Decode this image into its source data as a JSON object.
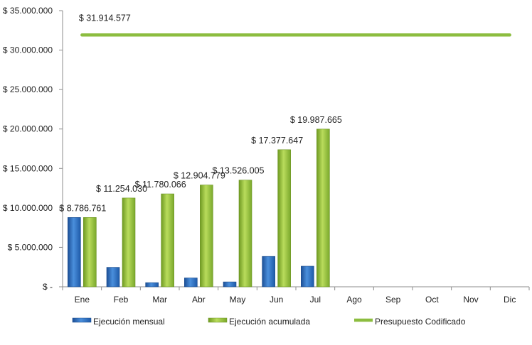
{
  "chart_data": {
    "type": "bar",
    "categories": [
      "Ene",
      "Feb",
      "Mar",
      "Abr",
      "May",
      "Jun",
      "Jul",
      "Ago",
      "Sep",
      "Oct",
      "Nov",
      "Dic"
    ],
    "ylim": [
      0,
      35000000
    ],
    "y_ticks": [
      0,
      5000000,
      10000000,
      15000000,
      20000000,
      25000000,
      30000000,
      35000000
    ],
    "y_tick_labels": [
      "$ -",
      "$ 5.000.000",
      "$ 10.000.000",
      "$ 15.000.000",
      "$ 20.000.000",
      "$ 25.000.000",
      "$ 30.000.000",
      "$ 35.000.000"
    ],
    "grid": false,
    "legend_position": "bottom",
    "series": [
      {
        "name": "Ejecución mensual",
        "kind": "bar",
        "color": "#2e75c8",
        "values": [
          8786761,
          2467269,
          526036,
          1124713,
          621226,
          3851642,
          2610018,
          null,
          null,
          null,
          null,
          null
        ],
        "labels": [
          "",
          "",
          "",
          "",
          "",
          "",
          "",
          "",
          "",
          "",
          "",
          ""
        ]
      },
      {
        "name": "Ejecución acumulada",
        "kind": "bar",
        "color": "#9bc43c",
        "values": [
          8786761,
          11254030,
          11780066,
          12904779,
          13526005,
          17377647,
          19987665,
          null,
          null,
          null,
          null,
          null
        ],
        "labels": [
          "$ 8.786.761",
          "$ 11.254.030",
          "$ 11.780.066",
          "$ 12.904.779",
          "$ 13.526.005",
          "$ 17.377.647",
          "$ 19.987.665",
          "",
          "",
          "",
          "",
          ""
        ]
      },
      {
        "name": "Presupuesto Codificado",
        "kind": "line",
        "color": "#8cbd3f",
        "values": [
          31914577,
          31914577,
          31914577,
          31914577,
          31914577,
          31914577,
          31914577,
          31914577,
          31914577,
          31914577,
          31914577,
          31914577
        ],
        "label": "$ 31.914.577"
      }
    ]
  }
}
